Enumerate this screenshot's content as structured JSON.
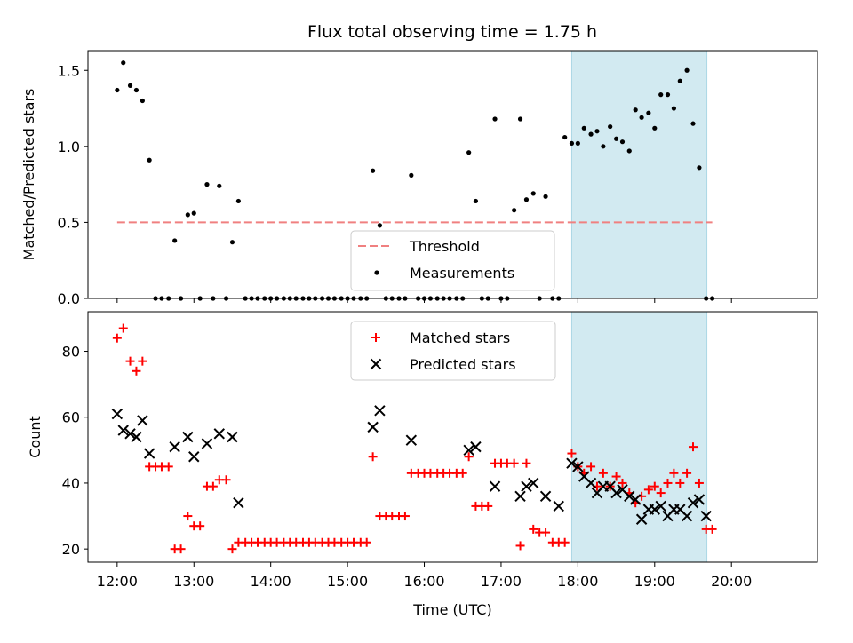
{
  "title": "Flux total observing time = 1.75 h",
  "colors": {
    "threshold": "#f08080",
    "measurement": "#000000",
    "matched": "#ff0000",
    "predicted": "#000000",
    "shade": "#add8e6"
  },
  "chart_data": [
    {
      "type": "scatter",
      "panel": "top",
      "ylabel": "Matched/Predicted stars",
      "ylim": [
        0,
        1.63
      ],
      "yticks": [
        "0.0",
        "0.5",
        "1.0",
        "1.5"
      ],
      "ytick_values": [
        0,
        0.5,
        1.0,
        1.5
      ],
      "xlim": [
        11.62,
        21.12
      ],
      "shaded_interval": [
        17.92,
        19.68
      ],
      "legend": {
        "placement": "lower-center",
        "threshold_label": "Threshold",
        "measurements_label": "Measurements"
      },
      "threshold": {
        "value": 0.5,
        "x_range": [
          12.0,
          19.75
        ]
      },
      "measurements": {
        "x": [
          12.0,
          12.08,
          12.17,
          12.25,
          12.33,
          12.42,
          12.5,
          12.58,
          12.67,
          12.75,
          12.83,
          12.92,
          13.0,
          13.08,
          13.17,
          13.25,
          13.33,
          13.42,
          13.5,
          13.58,
          13.67,
          13.75,
          13.83,
          13.92,
          14.0,
          14.08,
          14.17,
          14.25,
          14.33,
          14.42,
          14.5,
          14.58,
          14.67,
          14.75,
          14.83,
          14.92,
          15.0,
          15.08,
          15.17,
          15.25,
          15.33,
          15.42,
          15.5,
          15.58,
          15.67,
          15.75,
          15.83,
          15.92,
          16.0,
          16.08,
          16.17,
          16.25,
          16.33,
          16.42,
          16.5,
          16.58,
          16.67,
          16.75,
          16.83,
          16.92,
          17.0,
          17.08,
          17.17,
          17.25,
          17.33,
          17.42,
          17.5,
          17.58,
          17.67,
          17.75,
          17.83,
          17.92,
          18.0,
          18.08,
          18.17,
          18.25,
          18.33,
          18.42,
          18.5,
          18.58,
          18.67,
          18.75,
          18.83,
          18.92,
          19.0,
          19.08,
          19.17,
          19.25,
          19.33,
          19.42,
          19.5,
          19.58,
          19.67,
          19.75
        ],
        "y": [
          1.37,
          1.55,
          1.4,
          1.37,
          1.3,
          0.91,
          0.0,
          0.0,
          0.0,
          0.38,
          0.0,
          0.55,
          0.56,
          0.0,
          0.75,
          0.0,
          0.74,
          0.0,
          0.37,
          0.64,
          0.0,
          0.0,
          0.0,
          0.0,
          0.0,
          0.0,
          0.0,
          0.0,
          0.0,
          0.0,
          0.0,
          0.0,
          0.0,
          0.0,
          0.0,
          0.0,
          0.0,
          0.0,
          0.0,
          0.0,
          0.84,
          0.48,
          0.0,
          0.0,
          0.0,
          0.0,
          0.81,
          0.0,
          0.0,
          0.0,
          0.0,
          0.0,
          0.0,
          0.0,
          0.0,
          0.96,
          0.64,
          0.0,
          0.0,
          1.18,
          0.0,
          0.0,
          0.58,
          1.18,
          0.65,
          0.69,
          0.0,
          0.67,
          0.0,
          0.0,
          1.06,
          1.02,
          1.02,
          1.12,
          1.08,
          1.1,
          1.0,
          1.13,
          1.05,
          1.03,
          0.97,
          1.24,
          1.19,
          1.22,
          1.12,
          1.34,
          1.34,
          1.25,
          1.43,
          1.5,
          1.15,
          0.86,
          0.0,
          0.0
        ]
      }
    },
    {
      "type": "scatter",
      "panel": "bottom",
      "ylabel": "Count",
      "xlabel": "Time (UTC)",
      "ylim": [
        16,
        92
      ],
      "yticks": [
        "20",
        "40",
        "60",
        "80"
      ],
      "ytick_values": [
        20,
        40,
        60,
        80
      ],
      "xlim": [
        11.62,
        21.12
      ],
      "xticks": [
        "12:00",
        "13:00",
        "14:00",
        "15:00",
        "16:00",
        "17:00",
        "18:00",
        "19:00",
        "20:00"
      ],
      "xtick_values": [
        12,
        13,
        14,
        15,
        16,
        17,
        18,
        19,
        20
      ],
      "shaded_interval": [
        17.92,
        19.68
      ],
      "legend": {
        "placement": "top-center",
        "matched_label": "Matched stars",
        "predicted_label": "Predicted stars"
      },
      "matched": {
        "x": [
          12.0,
          12.08,
          12.17,
          12.25,
          12.33,
          12.42,
          12.5,
          12.58,
          12.67,
          12.75,
          12.83,
          12.92,
          13.0,
          13.08,
          13.17,
          13.25,
          13.33,
          13.42,
          13.5,
          13.58,
          13.67,
          13.75,
          13.83,
          13.92,
          14.0,
          14.08,
          14.17,
          14.25,
          14.33,
          14.42,
          14.5,
          14.58,
          14.67,
          14.75,
          14.83,
          14.92,
          15.0,
          15.08,
          15.17,
          15.25,
          15.33,
          15.42,
          15.5,
          15.58,
          15.67,
          15.75,
          15.83,
          15.92,
          16.0,
          16.08,
          16.17,
          16.25,
          16.33,
          16.42,
          16.5,
          16.58,
          16.67,
          16.75,
          16.83,
          16.92,
          17.0,
          17.08,
          17.17,
          17.25,
          17.33,
          17.42,
          17.5,
          17.58,
          17.67,
          17.75,
          17.83,
          17.92,
          18.0,
          18.08,
          18.17,
          18.25,
          18.33,
          18.42,
          18.5,
          18.58,
          18.67,
          18.75,
          18.83,
          18.92,
          19.0,
          19.08,
          19.17,
          19.25,
          19.33,
          19.42,
          19.5,
          19.58,
          19.67,
          19.75
        ],
        "y": [
          84,
          87,
          77,
          74,
          77,
          45,
          45,
          45,
          45,
          20,
          20,
          30,
          27,
          27,
          39,
          39,
          41,
          41,
          20,
          22,
          22,
          22,
          22,
          22,
          22,
          22,
          22,
          22,
          22,
          22,
          22,
          22,
          22,
          22,
          22,
          22,
          22,
          22,
          22,
          22,
          48,
          30,
          30,
          30,
          30,
          30,
          43,
          43,
          43,
          43,
          43,
          43,
          43,
          43,
          43,
          48,
          33,
          33,
          33,
          46,
          46,
          46,
          46,
          21,
          46,
          26,
          25,
          25,
          22,
          22,
          22,
          49,
          45,
          43,
          45,
          39,
          43,
          39,
          42,
          40,
          37,
          34,
          36,
          38,
          39,
          37,
          40,
          43,
          40,
          43,
          51,
          40,
          26,
          26
        ]
      },
      "predicted": {
        "x": [
          12.0,
          12.08,
          12.17,
          12.25,
          12.33,
          12.42,
          12.75,
          12.92,
          13.0,
          13.17,
          13.33,
          13.5,
          13.58,
          15.33,
          15.42,
          15.83,
          16.58,
          16.67,
          16.92,
          17.25,
          17.33,
          17.42,
          17.58,
          17.75,
          17.92,
          18.0,
          18.08,
          18.17,
          18.25,
          18.33,
          18.42,
          18.5,
          18.58,
          18.67,
          18.75,
          18.83,
          18.92,
          19.0,
          19.08,
          19.17,
          19.25,
          19.33,
          19.42,
          19.5,
          19.58,
          19.67
        ],
        "y": [
          61,
          56,
          55,
          54,
          59,
          49,
          51,
          54,
          48,
          52,
          55,
          54,
          34,
          57,
          62,
          53,
          50,
          51,
          39,
          36,
          39,
          40,
          36,
          33,
          46,
          45,
          42,
          40,
          37,
          39,
          39,
          37,
          38,
          36,
          35,
          29,
          32,
          32,
          33,
          30,
          32,
          32,
          30,
          34,
          35,
          30
        ]
      }
    }
  ]
}
